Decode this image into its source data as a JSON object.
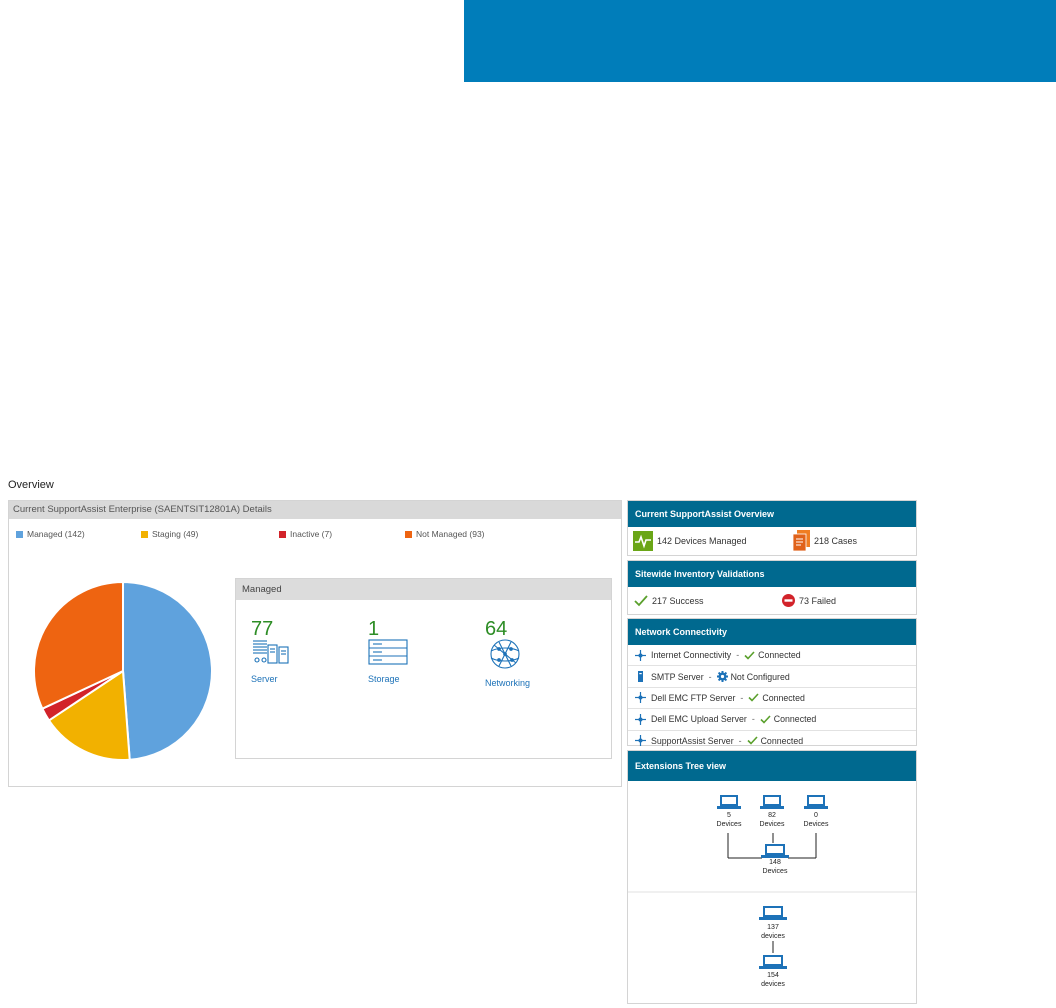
{
  "overview_title": "Overview",
  "details": {
    "title": "Current SupportAssist Enterprise (SAENTSIT12801A) Details",
    "legend": [
      {
        "label": "Managed (142)",
        "color": "#5fa2dd"
      },
      {
        "label": "Staging (49)",
        "color": "#f2b100"
      },
      {
        "label": "Inactive (7)",
        "color": "#d2232a"
      },
      {
        "label": "Not Managed (93)",
        "color": "#ee6411"
      }
    ]
  },
  "chart_data": {
    "type": "pie",
    "categories": [
      "Managed",
      "Staging",
      "Inactive",
      "Not Managed"
    ],
    "values": [
      142,
      49,
      7,
      93
    ],
    "colors": [
      "#5fa2dd",
      "#f2b100",
      "#d2232a",
      "#ee6411"
    ]
  },
  "managed": {
    "title": "Managed",
    "items": [
      {
        "count": "77",
        "label": "Server",
        "icon": "server-icon"
      },
      {
        "count": "1",
        "label": "Storage",
        "icon": "storage-icon"
      },
      {
        "count": "64",
        "label": "Networking",
        "icon": "networking-icon"
      }
    ]
  },
  "overview_panel": {
    "title": "Current SupportAssist Overview",
    "devices": "142 Devices Managed",
    "cases": "218 Cases"
  },
  "validations": {
    "title": "Sitewide Inventory Validations",
    "success": "217 Success",
    "failed": "73 Failed"
  },
  "network": {
    "title": "Network Connectivity",
    "rows": [
      {
        "name": "Internet Connectivity",
        "sep": "-",
        "status": "Connected"
      },
      {
        "name": "SMTP Server",
        "sep": "-",
        "status": "Not Configured"
      },
      {
        "name": "Dell EMC FTP Server",
        "sep": "-",
        "status": "Connected"
      },
      {
        "name": "Dell EMC Upload Server",
        "sep": "-",
        "status": "Connected"
      },
      {
        "name": "SupportAssist Server",
        "sep": "-",
        "status": "Connected"
      }
    ]
  },
  "extensions": {
    "title": "Extensions Tree view",
    "tree1": {
      "children": [
        {
          "count": "5",
          "unit": "Devices"
        },
        {
          "count": "82",
          "unit": "Devices"
        },
        {
          "count": "0",
          "unit": "Devices"
        }
      ],
      "root": {
        "count": "148",
        "unit": "Devices"
      }
    },
    "tree2": {
      "top": {
        "count": "137",
        "unit": "devices"
      },
      "bottom": {
        "count": "154",
        "unit": "devices"
      }
    }
  }
}
